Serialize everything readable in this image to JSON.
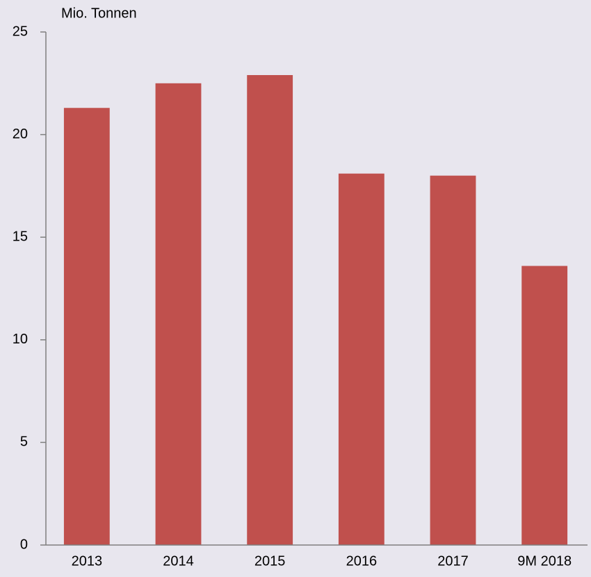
{
  "chart_data": {
    "type": "bar",
    "y_label": "Mio. Tonnen",
    "categories": [
      "2013",
      "2014",
      "2015",
      "2016",
      "2017",
      "9M 2018"
    ],
    "values": [
      21.3,
      22.5,
      22.9,
      18.1,
      18.0,
      13.6
    ],
    "color": "#c0504d",
    "ylim": [
      0,
      25
    ],
    "yticks": [
      0,
      5,
      10,
      15,
      20,
      25
    ],
    "grid": false
  }
}
